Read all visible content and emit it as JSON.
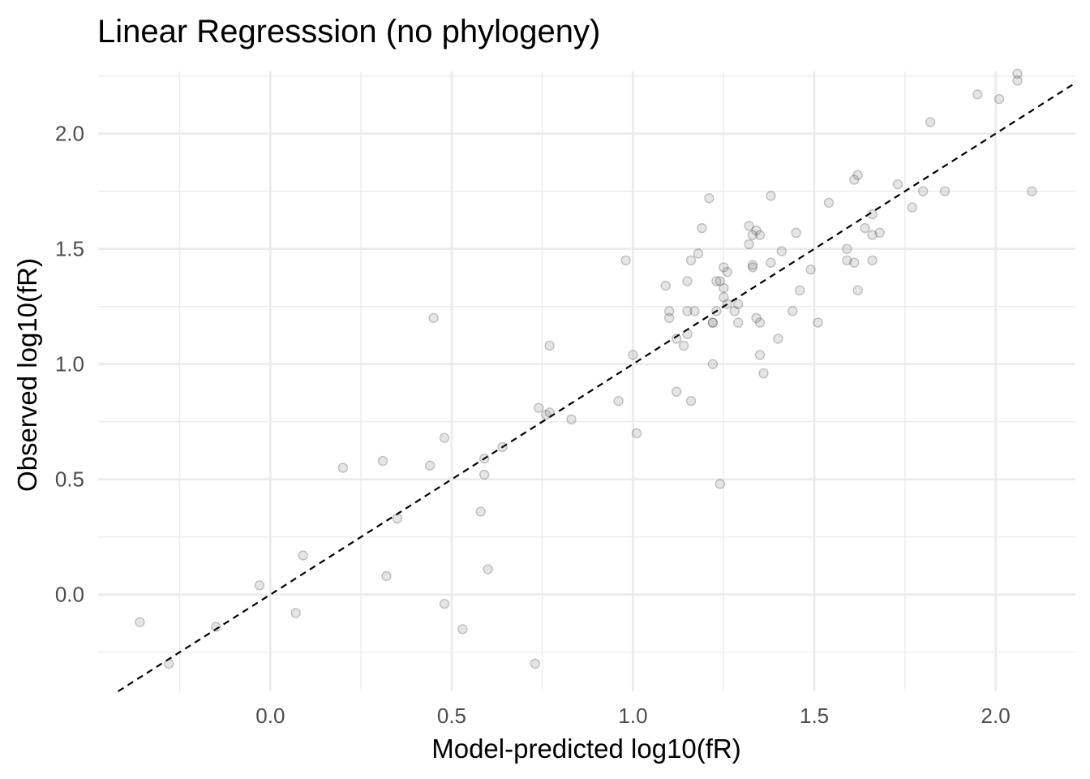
{
  "chart_data": {
    "type": "scatter",
    "title": "Linear Regresssion (no phylogeny)",
    "xlabel": "Model-predicted log10(fR)",
    "ylabel": "Observed log10(fR)",
    "xlim": [
      -0.475,
      2.22
    ],
    "ylim": [
      -0.42,
      2.27
    ],
    "x_major_ticks": [
      0.0,
      0.5,
      1.0,
      1.5,
      2.0
    ],
    "x_tick_labels": [
      "0.0",
      "0.5",
      "1.0",
      "1.5",
      "2.0"
    ],
    "x_minor_ticks": [
      -0.25,
      0.25,
      0.75,
      1.25,
      1.75
    ],
    "y_major_ticks": [
      0.0,
      0.5,
      1.0,
      1.5,
      2.0
    ],
    "y_tick_labels": [
      "0.0",
      "0.5",
      "1.0",
      "1.5",
      "2.0"
    ],
    "y_minor_ticks": [
      -0.25,
      0.25,
      0.75,
      1.25,
      1.75,
      2.25
    ],
    "grid": true,
    "reference_line": {
      "slope": 1,
      "intercept": 0,
      "style": "dashed"
    },
    "x": [
      -0.36,
      -0.28,
      -0.15,
      -0.03,
      0.07,
      0.09,
      0.2,
      0.31,
      0.32,
      0.35,
      0.44,
      0.45,
      0.48,
      0.48,
      0.53,
      0.58,
      0.59,
      0.59,
      0.6,
      0.64,
      0.73,
      0.74,
      0.76,
      0.77,
      0.77,
      0.83,
      0.96,
      0.98,
      1.0,
      1.01,
      1.09,
      1.1,
      1.1,
      1.12,
      1.12,
      1.14,
      1.15,
      1.15,
      1.15,
      1.16,
      1.16,
      1.17,
      1.18,
      1.19,
      1.21,
      1.22,
      1.22,
      1.22,
      1.23,
      1.23,
      1.24,
      1.24,
      1.25,
      1.25,
      1.25,
      1.26,
      1.26,
      1.28,
      1.29,
      1.29,
      1.32,
      1.32,
      1.33,
      1.33,
      1.33,
      1.34,
      1.34,
      1.35,
      1.35,
      1.35,
      1.36,
      1.38,
      1.38,
      1.4,
      1.41,
      1.44,
      1.45,
      1.46,
      1.49,
      1.51,
      1.54,
      1.59,
      1.59,
      1.61,
      1.61,
      1.62,
      1.62,
      1.64,
      1.66,
      1.66,
      1.66,
      1.68,
      1.73,
      1.77,
      1.8,
      1.82,
      1.86,
      1.95,
      2.01,
      2.06,
      2.06,
      2.1
    ],
    "y": [
      -0.12,
      -0.3,
      -0.14,
      0.04,
      -0.08,
      0.17,
      0.55,
      0.58,
      0.08,
      0.33,
      0.56,
      1.2,
      0.68,
      -0.04,
      -0.15,
      0.36,
      0.52,
      0.59,
      0.11,
      0.64,
      -0.3,
      0.81,
      0.78,
      0.79,
      1.08,
      0.76,
      0.84,
      1.45,
      1.04,
      0.7,
      1.34,
      1.2,
      1.23,
      0.88,
      1.11,
      1.08,
      1.13,
      1.23,
      1.36,
      0.84,
      1.45,
      1.23,
      1.48,
      1.59,
      1.72,
      1.18,
      1.18,
      1.0,
      1.36,
      1.23,
      0.48,
      1.36,
      1.33,
      1.42,
      1.29,
      1.4,
      1.26,
      1.23,
      1.18,
      1.26,
      1.52,
      1.6,
      1.42,
      1.43,
      1.56,
      1.58,
      1.2,
      1.04,
      1.18,
      1.56,
      0.96,
      1.44,
      1.73,
      1.11,
      1.49,
      1.23,
      1.57,
      1.32,
      1.41,
      1.18,
      1.7,
      1.5,
      1.45,
      1.44,
      1.8,
      1.82,
      1.32,
      1.59,
      1.45,
      1.65,
      1.56,
      1.57,
      1.78,
      1.68,
      1.75,
      2.05,
      1.75,
      2.17,
      2.15,
      2.23,
      2.26,
      1.75
    ]
  }
}
